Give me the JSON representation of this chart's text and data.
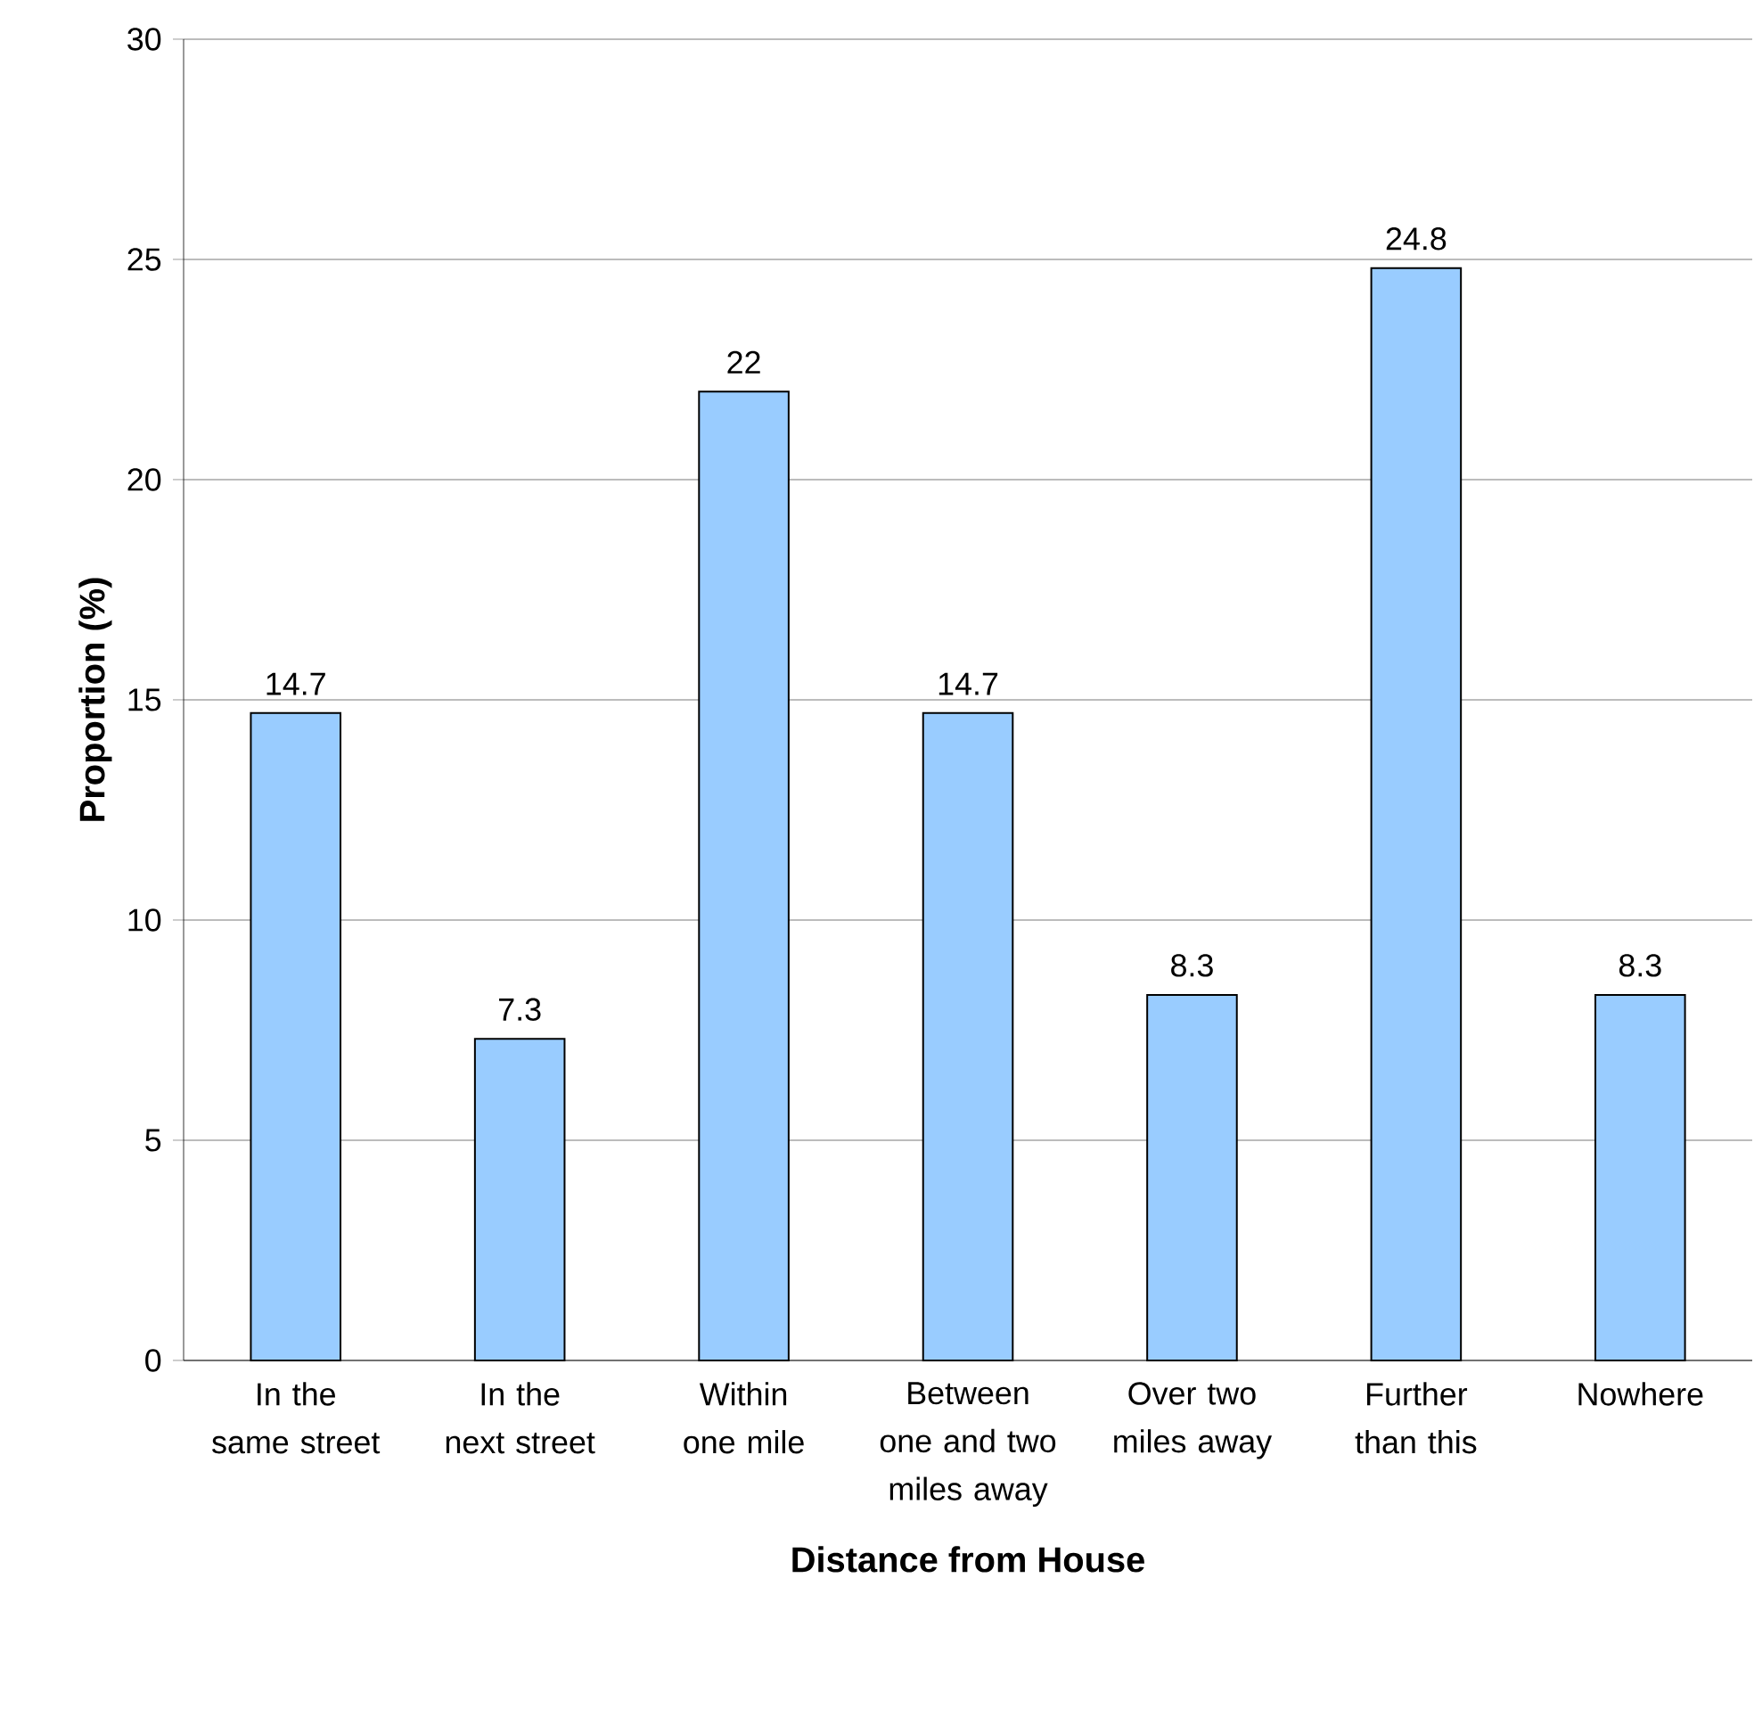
{
  "chart_data": {
    "type": "bar",
    "xlabel": "Distance from House",
    "ylabel": "Proportion (%)",
    "categories": [
      "In the same street",
      "In the next street",
      "Within one mile",
      "Between one and two miles away",
      "Over two miles away",
      "Further than this",
      "Nowhere"
    ],
    "values": [
      14.7,
      7.3,
      22,
      14.7,
      8.3,
      24.8,
      8.3
    ],
    "color": "#99ccff",
    "ylim": [
      0,
      30
    ],
    "yticks": [
      0,
      5,
      10,
      15,
      20,
      25,
      30
    ],
    "grid": "y",
    "data_labels": true,
    "legend": false
  }
}
